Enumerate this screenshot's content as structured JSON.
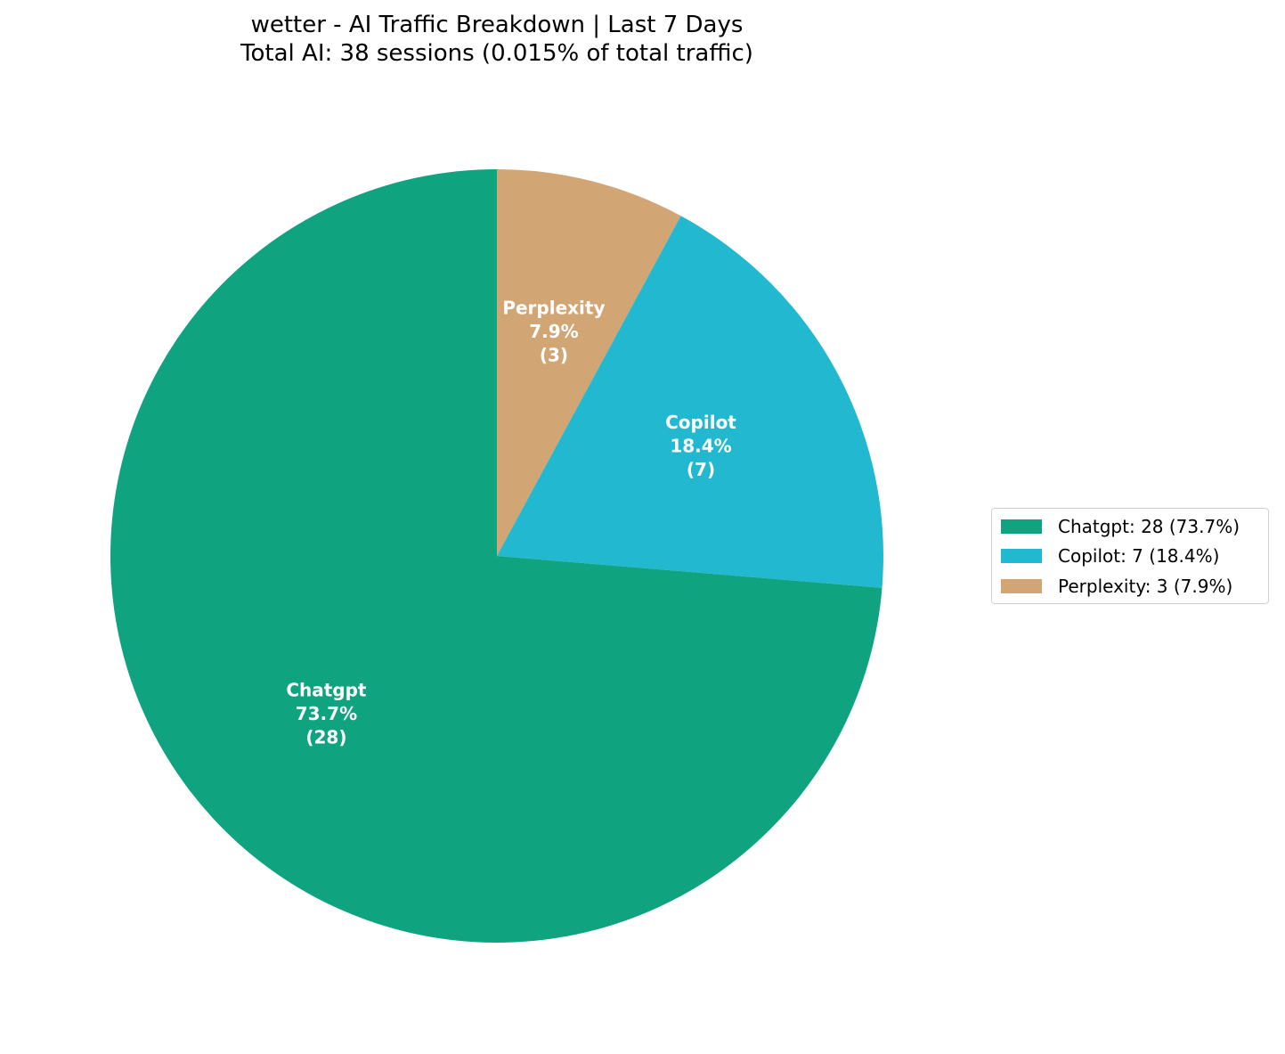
{
  "title": {
    "line1": "wetter - AI Traffic Breakdown | Last 7 Days",
    "line2": "Total AI: 38 sessions (0.015% of total traffic)"
  },
  "chart_data": {
    "type": "pie",
    "title": "wetter - AI Traffic Breakdown | Last 7 Days\nTotal AI: 38 sessions (0.015% of total traffic)",
    "total": 38,
    "start_angle": 90,
    "direction": "clockwise",
    "categories": [
      "Chatgpt",
      "Copilot",
      "Perplexity"
    ],
    "values": [
      28,
      7,
      3
    ],
    "percentages": [
      73.7,
      18.4,
      7.9
    ],
    "colors": [
      "#10a37f",
      "#22b8cf",
      "#d2a574"
    ],
    "slice_labels": [
      [
        "Chatgpt",
        "73.7%",
        "(28)"
      ],
      [
        "Copilot",
        "18.4%",
        "(7)"
      ],
      [
        "Perplexity",
        "7.9%",
        "(3)"
      ]
    ],
    "legend_position": "right",
    "legend_entries": [
      "Chatgpt: 28 (73.7%)",
      "Copilot: 7 (18.4%)",
      "Perplexity: 3 (7.9%)"
    ]
  },
  "legend": {
    "items": [
      {
        "label": "Chatgpt: 28 (73.7%)",
        "color": "#10a37f"
      },
      {
        "label": "Copilot: 7 (18.4%)",
        "color": "#22b8cf"
      },
      {
        "label": "Perplexity: 3 (7.9%)",
        "color": "#d2a574"
      }
    ]
  }
}
